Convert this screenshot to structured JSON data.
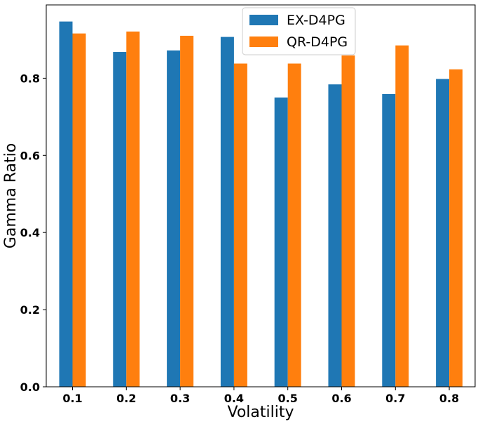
{
  "chart_data": {
    "type": "bar",
    "title": "",
    "xlabel": "Volatility",
    "ylabel": "Gamma Ratio",
    "categories": [
      "0.1",
      "0.2",
      "0.3",
      "0.4",
      "0.5",
      "0.6",
      "0.7",
      "0.8"
    ],
    "series": [
      {
        "name": "EX-D4PG",
        "color": "#1f77b4",
        "values": [
          0.947,
          0.868,
          0.872,
          0.907,
          0.75,
          0.784,
          0.759,
          0.798
        ]
      },
      {
        "name": "QR-D4PG",
        "color": "#ff7f0e",
        "values": [
          0.916,
          0.921,
          0.91,
          0.838,
          0.838,
          0.859,
          0.885,
          0.823
        ]
      }
    ],
    "ylim": [
      0,
      0.99
    ],
    "yticks": [
      0.0,
      0.2,
      0.4,
      0.6,
      0.8
    ],
    "ytick_labels": [
      "0.0",
      "0.2",
      "0.4",
      "0.6",
      "0.8"
    ],
    "grid": false,
    "legend_position": "top-center"
  }
}
